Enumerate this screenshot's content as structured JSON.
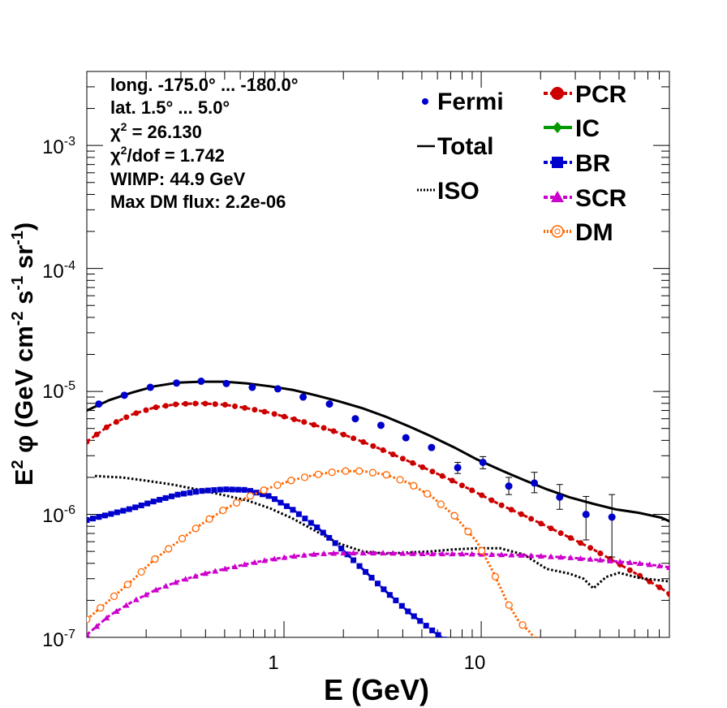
{
  "chart_data": {
    "type": "line",
    "x_scale": "log",
    "y_scale": "log",
    "xlim": [
      0.1,
      90
    ],
    "ylim": [
      1e-07,
      0.004
    ],
    "xlabel": "E (GeV)",
    "ylabel": {
      "lead": "E",
      "exp1": "2",
      "phi": "φ",
      "body1": "(GeV cm",
      "exp2": "-2",
      "body2": " s",
      "exp3": "-1",
      "body3": " sr",
      "exp4": "-1",
      "close": ")"
    },
    "x_ticks": [
      {
        "value": 1,
        "label": "1"
      },
      {
        "value": 10,
        "label": "10"
      }
    ],
    "y_ticks": [
      {
        "value": 1e-07,
        "base": "10",
        "exp": "-7"
      },
      {
        "value": 1e-06,
        "base": "10",
        "exp": "-6"
      },
      {
        "value": 1e-05,
        "base": "10",
        "exp": "-5"
      },
      {
        "value": 0.0001,
        "base": "10",
        "exp": "-4"
      },
      {
        "value": 0.001,
        "base": "10",
        "exp": "-3"
      }
    ],
    "info_text": {
      "line1": "long. -175.0° ... -180.0°",
      "line2": "lat. 1.5° ... 5.0°",
      "chi2_sym": "χ",
      "chi2_exp": "2",
      "chi2_val": " = 26.130",
      "chi2dof_sym": "χ",
      "chi2dof_exp": "2",
      "chi2dof_val": "/dof = 1.742",
      "line5": "WIMP: 44.9 GeV",
      "line6": "Max DM flux: 2.2e-06"
    },
    "legend": [
      {
        "name": "Fermi",
        "color": "#0000cc",
        "style": "points"
      },
      {
        "name": "Total",
        "color": "#000000",
        "style": "solid"
      },
      {
        "name": "ISO",
        "color": "#000000",
        "style": "dotted"
      },
      {
        "name": "PCR",
        "color": "#cc0000",
        "marker": "circle"
      },
      {
        "name": "IC",
        "color": "#009900",
        "marker": "diamond"
      },
      {
        "name": "BR",
        "color": "#0000cc",
        "marker": "square"
      },
      {
        "name": "SCR",
        "color": "#cc00cc",
        "marker": "triangle"
      },
      {
        "name": "DM",
        "color": "#ff6600",
        "marker": "open-circle"
      }
    ],
    "fermi": {
      "color": "#0000cc",
      "points": [
        {
          "x": 0.115,
          "y": 7.9e-06
        },
        {
          "x": 0.155,
          "y": 9.3e-06
        },
        {
          "x": 0.21,
          "y": 1.08e-05
        },
        {
          "x": 0.285,
          "y": 1.17e-05
        },
        {
          "x": 0.38,
          "y": 1.21e-05
        },
        {
          "x": 0.51,
          "y": 1.16e-05
        },
        {
          "x": 0.69,
          "y": 1.08e-05
        },
        {
          "x": 0.93,
          "y": 1.05e-05
        },
        {
          "x": 1.25,
          "y": 9e-06
        },
        {
          "x": 1.7,
          "y": 7.9e-06
        },
        {
          "x": 2.3,
          "y": 6e-06
        },
        {
          "x": 3.1,
          "y": 5.3e-06
        },
        {
          "x": 4.15,
          "y": 4.2e-06
        },
        {
          "x": 5.6,
          "y": 3.5e-06
        },
        {
          "x": 7.6,
          "y": 2.4e-06,
          "lo": 2.15e-06,
          "hi": 2.65e-06
        },
        {
          "x": 10.2,
          "y": 2.65e-06,
          "lo": 2.35e-06,
          "hi": 2.95e-06
        },
        {
          "x": 13.8,
          "y": 1.7e-06,
          "lo": 1.45e-06,
          "hi": 2e-06
        },
        {
          "x": 18.6,
          "y": 1.8e-06,
          "lo": 1.5e-06,
          "hi": 2.2e-06
        },
        {
          "x": 25,
          "y": 1.38e-06,
          "lo": 1.1e-06,
          "hi": 1.75e-06
        },
        {
          "x": 34,
          "y": 1e-06,
          "lo": 6.2e-07,
          "hi": 1.4e-06
        },
        {
          "x": 46,
          "y": 9.5e-07,
          "lo": 4.5e-07,
          "hi": 1.45e-06
        }
      ]
    },
    "series": [
      {
        "name": "Total",
        "color": "#000000",
        "style": "solid",
        "x": [
          0.1,
          0.13,
          0.17,
          0.22,
          0.29,
          0.38,
          0.5,
          0.65,
          0.85,
          1.1,
          1.45,
          1.9,
          2.5,
          3.3,
          4.3,
          5.6,
          7.3,
          9.5,
          12.5,
          16.5,
          21.5,
          28,
          37,
          48,
          63,
          82,
          90
        ],
        "y": [
          7e-06,
          8.5e-06,
          9.8e-06,
          1.1e-05,
          1.18e-05,
          1.2e-05,
          1.2e-05,
          1.16e-05,
          1.1e-05,
          1.03e-05,
          9.3e-06,
          8.3e-06,
          7.3e-06,
          6.2e-06,
          5.2e-06,
          4.3e-06,
          3.5e-06,
          2.8e-06,
          2.3e-06,
          1.9e-06,
          1.6e-06,
          1.38e-06,
          1.22e-06,
          1.1e-06,
          1.03e-06,
          9.4e-07,
          8.8e-07
        ]
      },
      {
        "name": "PCR",
        "color": "#cc0000",
        "style": "dashed",
        "marker": "circle",
        "x": [
          0.1,
          0.13,
          0.17,
          0.22,
          0.29,
          0.38,
          0.5,
          0.65,
          0.85,
          1.1,
          1.45,
          1.9,
          2.5,
          3.3,
          4.3,
          5.6,
          7.3,
          9.5,
          12.5,
          16.5,
          21.5,
          28,
          37,
          48,
          63,
          82,
          90
        ],
        "y": [
          3.9e-06,
          5.3e-06,
          6.5e-06,
          7.4e-06,
          7.9e-06,
          8e-06,
          7.8e-06,
          7.3e-06,
          6.7e-06,
          6e-06,
          5.3e-06,
          4.6e-06,
          3.9e-06,
          3.25e-06,
          2.7e-06,
          2.25e-06,
          1.85e-06,
          1.5e-06,
          1.2e-06,
          9.8e-07,
          8e-07,
          6.5e-07,
          5.2e-07,
          4.1e-07,
          3.2e-07,
          2.5e-07,
          2.25e-07
        ]
      },
      {
        "name": "ISO",
        "color": "#000000",
        "style": "dotted",
        "x": [
          0.11,
          0.15,
          0.2,
          0.27,
          0.36,
          0.48,
          0.65,
          0.85,
          1.1,
          1.45,
          1.9,
          2.5,
          3.3,
          4.3,
          5.6,
          7.3,
          9.5,
          12.5,
          16.5,
          21.5,
          28,
          33,
          37,
          43,
          50,
          63,
          82,
          90
        ],
        "y": [
          2.05e-06,
          2e-06,
          1.88e-06,
          1.75e-06,
          1.6e-06,
          1.45e-06,
          1.3e-06,
          1.12e-06,
          9.3e-07,
          7.3e-07,
          5.8e-07,
          5e-07,
          4.8e-07,
          4.9e-07,
          5e-07,
          5.2e-07,
          5.3e-07,
          5.3e-07,
          4.7e-07,
          3.6e-07,
          3.3e-07,
          3e-07,
          2.5e-07,
          3.1e-07,
          3.35e-07,
          3.05e-07,
          2.9e-07,
          2.85e-07
        ]
      },
      {
        "name": "BR",
        "color": "#0000cc",
        "style": "dashed",
        "marker": "square",
        "x": [
          0.1,
          0.13,
          0.17,
          0.22,
          0.29,
          0.38,
          0.5,
          0.65,
          0.85,
          1.1,
          1.45,
          1.9,
          2.5,
          3.3,
          4.3,
          5.6,
          6.5
        ],
        "y": [
          9e-07,
          1e-06,
          1.12e-06,
          1.28e-06,
          1.45e-06,
          1.55e-06,
          1.6e-06,
          1.58e-06,
          1.4e-06,
          1.1e-06,
          8e-07,
          5.5e-07,
          3.6e-07,
          2.35e-07,
          1.6e-07,
          1.15e-07,
          9.6e-08
        ]
      },
      {
        "name": "SCR",
        "color": "#cc00cc",
        "style": "dashed",
        "marker": "triangle",
        "x": [
          0.1,
          0.13,
          0.17,
          0.22,
          0.29,
          0.38,
          0.5,
          0.65,
          0.85,
          1.1,
          1.45,
          1.9,
          2.5,
          3.3,
          4.3,
          5.6,
          7.3,
          9.5,
          12.5,
          16.5,
          21.5,
          28,
          37,
          48,
          63,
          82,
          90
        ],
        "y": [
          1.05e-07,
          1.5e-07,
          1.95e-07,
          2.4e-07,
          2.85e-07,
          3.25e-07,
          3.6e-07,
          3.95e-07,
          4.3e-07,
          4.55e-07,
          4.75e-07,
          4.85e-07,
          4.85e-07,
          4.85e-07,
          4.8e-07,
          4.78e-07,
          4.78e-07,
          4.75e-07,
          4.7e-07,
          4.65e-07,
          4.55e-07,
          4.45e-07,
          4.3e-07,
          4.15e-07,
          4e-07,
          3.8e-07,
          3.7e-07
        ]
      },
      {
        "name": "DM",
        "color": "#ff6600",
        "style": "dotted",
        "marker": "open-circle",
        "x": [
          0.1,
          0.13,
          0.17,
          0.22,
          0.29,
          0.38,
          0.5,
          0.65,
          0.85,
          1.1,
          1.45,
          1.9,
          2.5,
          3.3,
          4.3,
          5.6,
          7.3,
          9.5,
          11.5,
          13.5,
          15.5,
          17.5,
          19
        ],
        "y": [
          1.4e-07,
          2e-07,
          2.9e-07,
          4.3e-07,
          6e-07,
          8.3e-07,
          1.1e-06,
          1.38e-06,
          1.65e-06,
          1.9e-06,
          2.1e-06,
          2.25e-06,
          2.25e-06,
          2.1e-06,
          1.8e-06,
          1.4e-06,
          9.8e-07,
          6e-07,
          3.4e-07,
          1.95e-07,
          1.35e-07,
          1.12e-07,
          9.5e-08
        ]
      }
    ]
  }
}
